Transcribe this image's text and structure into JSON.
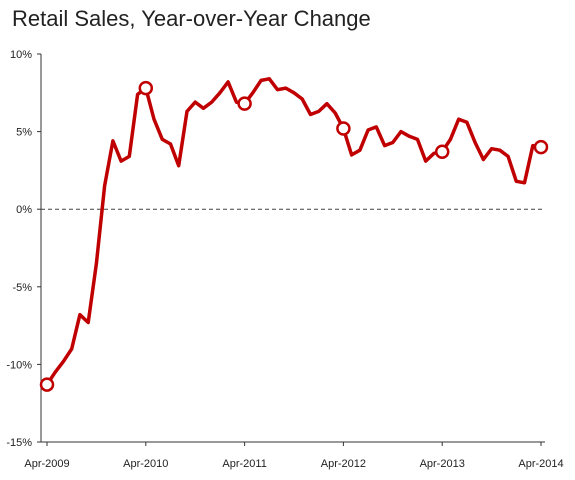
{
  "chart_data": {
    "type": "line",
    "title": "Retail Sales, Year-over-Year Change",
    "xlabel": "",
    "ylabel": "",
    "ylim": [
      -15,
      10
    ],
    "y_ticks": [
      "10%",
      "5%",
      "0%",
      "-5%",
      "-10%",
      "-15%"
    ],
    "y_tick_values": [
      10,
      5,
      0,
      -5,
      -10,
      -15
    ],
    "x_ticks": [
      "Apr-2009",
      "Apr-2010",
      "Apr-2011",
      "Apr-2012",
      "Apr-2013",
      "Apr-2014"
    ],
    "x_start": "Apr-2009",
    "x_end": "Apr-2014",
    "zero_line": "dashed",
    "grid": false,
    "line_color": "#c00000",
    "series": [
      {
        "values": [
          -11.3,
          -10.5,
          -9.8,
          -9.0,
          -6.8,
          -7.3,
          -3.5,
          1.5,
          4.4,
          3.1,
          3.4,
          7.4,
          7.8,
          5.8,
          4.5,
          4.2,
          2.8,
          6.3,
          6.9,
          6.5,
          6.9,
          7.5,
          8.2,
          6.9,
          6.8,
          7.5,
          8.3,
          8.4,
          7.7,
          7.8,
          7.5,
          7.1,
          6.1,
          6.3,
          6.8,
          6.2,
          5.2,
          3.5,
          3.8,
          5.1,
          5.3,
          4.1,
          4.3,
          5.0,
          4.7,
          4.5,
          3.1,
          3.6,
          3.7,
          4.5,
          5.8,
          5.6,
          4.3,
          3.2,
          3.9,
          3.8,
          3.4,
          1.8,
          1.7,
          4.1,
          4.0
        ],
        "highlight_indices": [
          0,
          12,
          24,
          36,
          48,
          60
        ]
      }
    ]
  }
}
